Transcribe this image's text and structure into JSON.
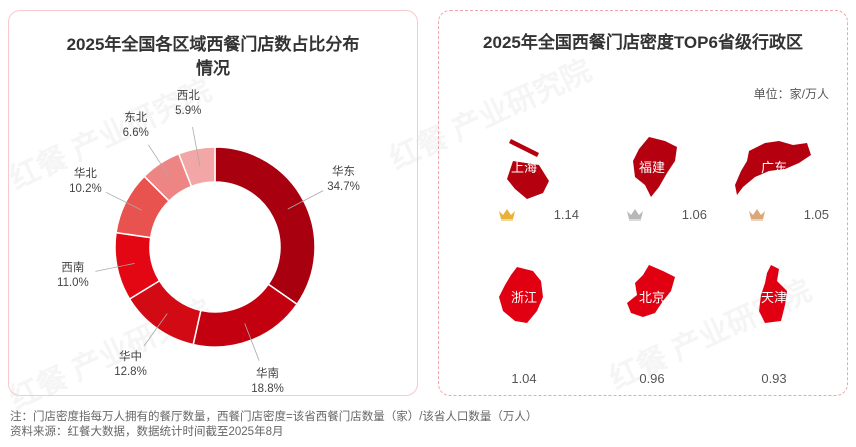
{
  "chart_data": [
    {
      "type": "pie",
      "variant": "donut",
      "title": "2025年全国各区域西餐门店数占比分布情况",
      "title_lines": [
        "2025年全国各区域西餐门店数占比分布",
        "情况"
      ],
      "categories": [
        "华东",
        "华南",
        "华中",
        "西南",
        "华北",
        "东北",
        "西北"
      ],
      "values": [
        34.7,
        18.8,
        12.8,
        11.0,
        10.2,
        6.6,
        5.9
      ],
      "labels": [
        "34.7%",
        "18.8%",
        "12.8%",
        "11.0%",
        "10.2%",
        "6.6%",
        "5.9%"
      ],
      "colors": [
        "#a8000f",
        "#c2000f",
        "#d20a14",
        "#e30613",
        "#e8524f",
        "#ee8585",
        "#f2a6a6"
      ]
    },
    {
      "type": "table",
      "title": "2025年全国西餐门店密度TOP6省级行政区",
      "unit": "单位：家/万人",
      "items": [
        {
          "name": "上海",
          "value": "1.14",
          "rank": 1,
          "crown": "gold-crown",
          "crown_color": "#e8b23a",
          "color": "#b5000f"
        },
        {
          "name": "福建",
          "value": "1.06",
          "rank": 2,
          "crown": "silver-crown",
          "crown_color": "#b8b8b8",
          "color": "#b5000f"
        },
        {
          "name": "广东",
          "value": "1.05",
          "rank": 3,
          "crown": "bronze-crown",
          "crown_color": "#d9a77a",
          "color": "#b5000f"
        },
        {
          "name": "浙江",
          "value": "1.04",
          "rank": 4,
          "color": "#e00012"
        },
        {
          "name": "北京",
          "value": "0.96",
          "rank": 5,
          "color": "#e00012"
        },
        {
          "name": "天津",
          "value": "0.93",
          "rank": 6,
          "color": "#e00012"
        }
      ]
    }
  ],
  "notes": {
    "note": "注：门店密度指每万人拥有的餐厅数量，西餐门店密度=该省西餐门店数量（家）/该省人口数量（万人）",
    "source": "资料来源：红餐大数据，数据统计时间截至2025年8月"
  },
  "watermark": "红餐产业研究院"
}
